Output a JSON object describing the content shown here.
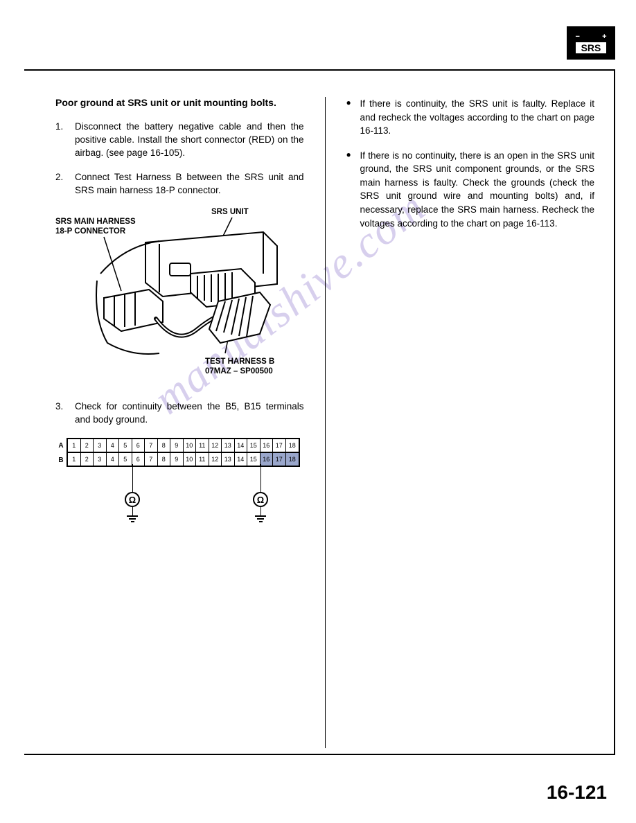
{
  "badge": {
    "minus": "−",
    "plus": "+",
    "text": "SRS"
  },
  "left": {
    "heading": "Poor ground at SRS unit or unit mounting bolts.",
    "steps": [
      {
        "num": "1.",
        "text": "Disconnect the battery negative cable and then the positive cable. Install the short connector (RED) on the airbag. (see page 16-105)."
      },
      {
        "num": "2.",
        "text": "Connect Test Harness B between the SRS unit and SRS main harness 18-P connector."
      }
    ],
    "diagram": {
      "label_unit": "SRS UNIT",
      "label_harness_l1": "SRS MAIN HARNESS",
      "label_harness_l2": "18-P CONNECTOR",
      "label_test_l1": "TEST HARNESS B",
      "label_test_l2": "07MAZ – SP00500"
    },
    "step3": {
      "num": "3.",
      "text": "Check for continuity between the B5, B15 terminals and body ground."
    },
    "pin_table": {
      "rows": [
        "A",
        "B"
      ],
      "cells": [
        "1",
        "2",
        "3",
        "4",
        "5",
        "6",
        "7",
        "8",
        "9",
        "10",
        "11",
        "12",
        "13",
        "14",
        "15",
        "16",
        "17",
        "18"
      ],
      "b_shaded_from": 16
    }
  },
  "right": {
    "bullets": [
      "If there is continuity, the SRS unit is faulty. Replace it and recheck the voltages according to the chart on page 16-113.",
      "If there is no continuity, there is an open in the SRS unit ground, the SRS unit component grounds, or the SRS main harness is faulty. Check the grounds (check the SRS unit ground wire and mounting bolts) and, if necessary, replace the SRS main harness. Recheck the voltages according to the chart on page 16-113."
    ]
  },
  "watermark": "manualshive.com",
  "page_number": "16-121",
  "colors": {
    "text": "#000000",
    "bg": "#ffffff",
    "shaded_cell": "#9aa7cc",
    "watermark": "#b8a8e0"
  }
}
